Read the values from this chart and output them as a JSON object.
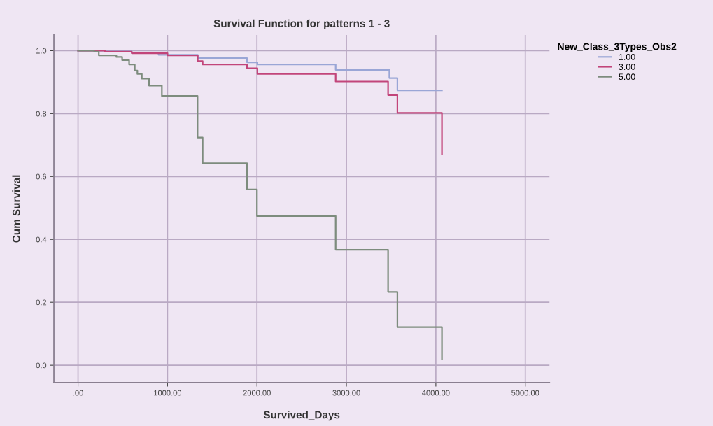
{
  "chart_data": {
    "type": "step",
    "title": "Survival Function for patterns 1 - 3",
    "xlabel": "Survived_Days",
    "ylabel": "Cum Survival",
    "legend_title": "New_Class_3Types_Obs2",
    "xlim": [
      -270,
      5270
    ],
    "ylim": [
      -0.055,
      1.05
    ],
    "xticks": [
      {
        "value": 0,
        "label": ".00"
      },
      {
        "value": 1000,
        "label": "1000.00"
      },
      {
        "value": 2000,
        "label": "2000.00"
      },
      {
        "value": 3000,
        "label": "3000.00"
      },
      {
        "value": 4000,
        "label": "4000.00"
      },
      {
        "value": 5000,
        "label": "5000.00"
      }
    ],
    "yticks": [
      {
        "value": 0,
        "label": "0.0"
      },
      {
        "value": 0.2,
        "label": "0.2"
      },
      {
        "value": 0.4,
        "label": "0.4"
      },
      {
        "value": 0.6,
        "label": "0.6"
      },
      {
        "value": 0.8,
        "label": "0.8"
      },
      {
        "value": 1.0,
        "label": "1.0"
      }
    ],
    "grid": true,
    "legend": "top right",
    "marker": "none",
    "line_style": "solid",
    "series": [
      {
        "name": "1.00",
        "color": "#9aa6d6",
        "x": [
          0,
          300,
          600,
          900,
          1338,
          1889,
          2005,
          2880,
          3480,
          3570,
          4068
        ],
        "values": [
          1.0,
          0.998,
          0.993,
          0.987,
          0.976,
          0.963,
          0.956,
          0.939,
          0.913,
          0.874,
          0.874
        ]
      },
      {
        "name": "3.00",
        "color": "#c2457a",
        "x": [
          0,
          300,
          600,
          1000,
          1338,
          1393,
          1889,
          2005,
          2880,
          3466,
          3570,
          4068
        ],
        "values": [
          1.0,
          0.997,
          0.992,
          0.985,
          0.967,
          0.956,
          0.944,
          0.926,
          0.902,
          0.859,
          0.802,
          0.67
        ]
      },
      {
        "name": "5.00",
        "color": "#7d8c7d",
        "x": [
          0,
          180,
          232,
          428,
          493,
          571,
          634,
          663,
          713,
          793,
          937,
          1336,
          1393,
          1889,
          2000,
          2880,
          3466,
          3570,
          4068
        ],
        "values": [
          1.0,
          0.997,
          0.985,
          0.98,
          0.97,
          0.956,
          0.937,
          0.926,
          0.911,
          0.889,
          0.856,
          0.724,
          0.642,
          0.559,
          0.474,
          0.367,
          0.233,
          0.121,
          0.019
        ]
      }
    ]
  }
}
